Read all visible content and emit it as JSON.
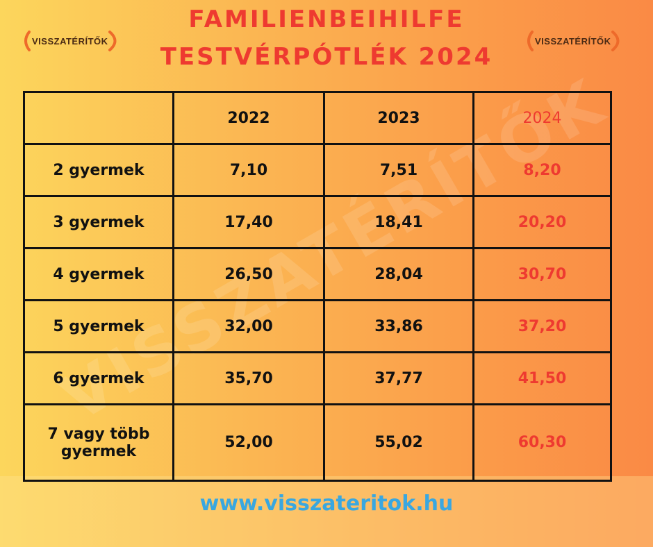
{
  "title": {
    "line1": "FAMILIENBEIHILFE",
    "line2": "TESTVÉRPÓTLÉK 2024"
  },
  "logo": {
    "text": "VISSZATÉRÍTŐK"
  },
  "watermark": {
    "text": "VISSZATÉRÍTŐK"
  },
  "colors": {
    "accent_red": "#ee3a30",
    "website_blue": "#39a7e0",
    "logo_orange": "#ee6a2a"
  },
  "table": {
    "columns": [
      "",
      "2022",
      "2023",
      "2024"
    ],
    "rows": [
      {
        "label": "2 gyermek",
        "v2022": "7,10",
        "v2023": "7,51",
        "v2024": "8,20"
      },
      {
        "label": "3 gyermek",
        "v2022": "17,40",
        "v2023": "18,41",
        "v2024": "20,20"
      },
      {
        "label": "4 gyermek",
        "v2022": "26,50",
        "v2023": "28,04",
        "v2024": "30,70"
      },
      {
        "label": "5 gyermek",
        "v2022": "32,00",
        "v2023": "33,86",
        "v2024": "37,20"
      },
      {
        "label": "6 gyermek",
        "v2022": "35,70",
        "v2023": "37,77",
        "v2024": "41,50"
      },
      {
        "label_line1": "7 vagy több",
        "label_line2": "gyermek",
        "v2022": "52,00",
        "v2023": "55,02",
        "v2024": "60,30"
      }
    ]
  },
  "website": "www.visszateritok.hu"
}
